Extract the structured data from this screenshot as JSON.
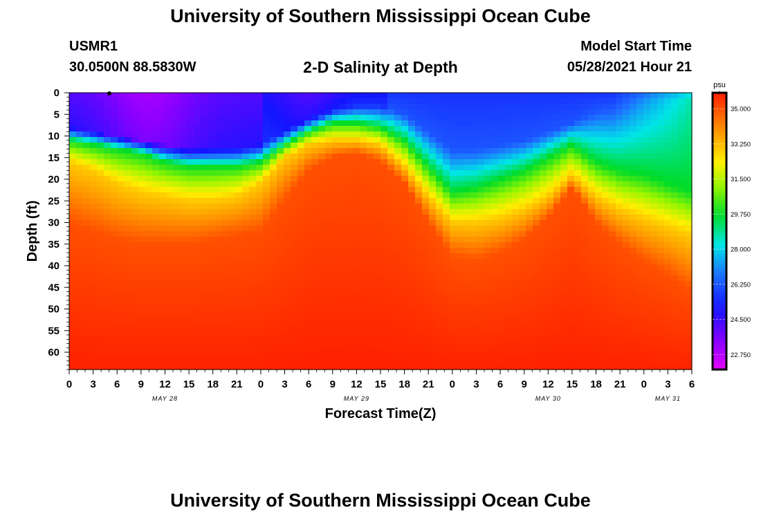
{
  "header": {
    "title": "University of Southern Mississippi Ocean Cube",
    "station": "USMR1",
    "coords": "30.0500N  88.5830W",
    "subtitle": "2-D Salinity at Depth",
    "start_label": "Model Start Time",
    "start_value": "05/28/2021 Hour 21"
  },
  "footer": {
    "title": "University of Southern Mississippi Ocean Cube"
  },
  "chart_data": {
    "type": "heatmap",
    "title": "2-D Salinity at Depth",
    "xlabel": "Forecast Time(Z)",
    "ylabel": "Depth (ft)",
    "x_unit": "hours from 05/28 00Z",
    "xlim": [
      0,
      78
    ],
    "ylim": [
      0,
      64
    ],
    "x_ticks": [
      0,
      3,
      6,
      9,
      12,
      15,
      18,
      21,
      24,
      27,
      30,
      33,
      36,
      39,
      42,
      45,
      48,
      51,
      54,
      57,
      60,
      63,
      66,
      69,
      72,
      75,
      78
    ],
    "x_tick_labels": [
      "0",
      "3",
      "6",
      "9",
      "12",
      "15",
      "18",
      "21",
      "0",
      "3",
      "6",
      "9",
      "12",
      "15",
      "18",
      "21",
      "0",
      "3",
      "6",
      "9",
      "12",
      "15",
      "18",
      "21",
      "0",
      "3",
      "6"
    ],
    "date_labels": [
      {
        "label": "MAY 28",
        "x": 12
      },
      {
        "label": "MAY 29",
        "x": 36
      },
      {
        "label": "MAY 30",
        "x": 60
      },
      {
        "label": "MAY 31",
        "x": 75
      }
    ],
    "y_ticks": [
      0,
      5,
      10,
      15,
      20,
      25,
      30,
      35,
      40,
      45,
      50,
      55,
      60
    ],
    "colorbar": {
      "unit": "psu",
      "min": 22.0,
      "max": 35.8,
      "labels": [
        "35.000",
        "33.250",
        "31.500",
        "29.750",
        "28.000",
        "26.250",
        "24.500",
        "22.750"
      ],
      "label_values": [
        35.0,
        33.25,
        31.5,
        29.75,
        28.0,
        26.25,
        24.5,
        22.75
      ]
    },
    "isohaline_depths_ft": {
      "x": [
        0,
        3,
        6,
        9,
        12,
        15,
        18,
        21,
        24,
        27,
        30,
        33,
        36,
        39,
        42,
        45,
        48,
        51,
        54,
        57,
        60,
        63,
        66,
        69,
        72,
        75,
        78
      ],
      "low_salinity_layer_bottom": [
        8,
        9,
        10,
        11,
        12,
        13,
        13,
        13,
        12,
        9,
        6,
        4,
        3,
        3,
        5,
        9,
        13,
        13,
        12,
        11,
        9,
        7,
        4,
        3,
        2,
        2,
        2
      ],
      "s29_75": [
        11,
        12,
        13,
        14,
        16,
        17,
        17,
        17,
        16,
        12,
        9,
        7,
        7,
        8,
        11,
        17,
        23,
        22,
        20,
        18,
        15,
        12,
        16,
        18,
        19,
        21,
        23
      ],
      "s33": [
        16,
        18,
        21,
        23,
        24,
        25,
        25,
        24,
        21,
        15,
        12,
        11,
        11,
        12,
        17,
        24,
        30,
        30,
        29,
        27,
        24,
        19,
        24,
        27,
        29,
        31,
        33
      ],
      "s35": [
        30,
        32,
        34,
        35,
        35,
        35,
        34,
        33,
        32,
        25,
        18,
        15,
        14,
        16,
        21,
        30,
        38,
        39,
        37,
        34,
        29,
        22,
        30,
        35,
        39,
        42,
        46
      ]
    },
    "surface_min_salinity": 22.8,
    "deep_salinity": 35.8
  }
}
